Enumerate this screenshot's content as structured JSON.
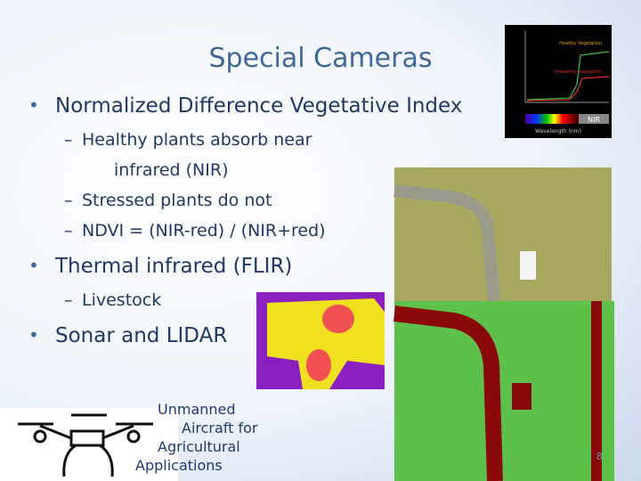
{
  "slide": {
    "title": "Special Cameras",
    "bullets": [
      {
        "text": "Normalized Difference Vegetative Index",
        "subitems": [
          {
            "lines": [
              "Healthy plants absorb near",
              "infrared (NIR)"
            ]
          },
          {
            "lines": [
              "Stressed plants do not"
            ]
          },
          {
            "lines": [
              "NDVI = (NIR-red) / (NIR+red)"
            ]
          }
        ]
      },
      {
        "text": "Thermal infrared (FLIR)",
        "subitems": [
          {
            "lines": [
              "Livestock"
            ]
          }
        ]
      },
      {
        "text": "Sonar and LIDAR",
        "subitems": []
      }
    ],
    "caption": [
      "Unmanned",
      "Aircraft for",
      "Agricultural",
      "Applications"
    ],
    "page_number": "8",
    "inset_chart": {
      "healthy_label": "Healthy Vegetation",
      "unhealthy_label": "Unhealthy vegetation",
      "band_label": "NIR",
      "x_label": "Wavelength (nm)"
    }
  }
}
